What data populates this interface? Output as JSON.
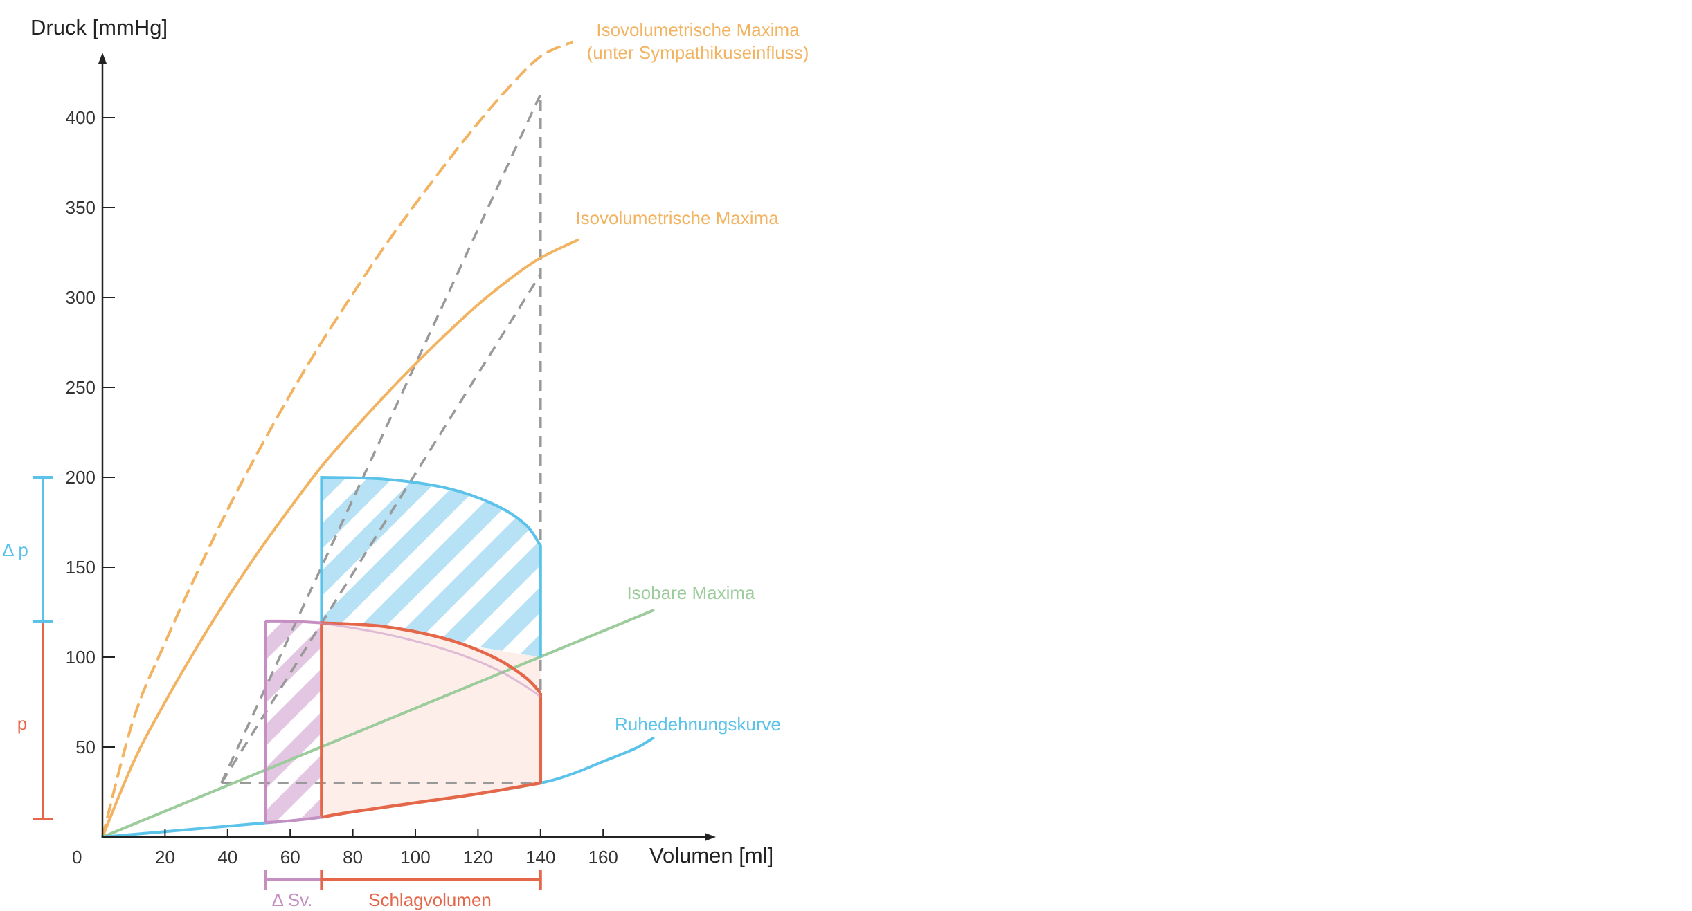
{
  "chart_data": {
    "type": "line",
    "xlabel": "Volumen [ml]",
    "ylabel": "Druck [mmHg]",
    "xlim": [
      0,
      175
    ],
    "ylim": [
      0,
      440
    ],
    "x_ticks": [
      20,
      40,
      60,
      80,
      100,
      120,
      140,
      160
    ],
    "y_ticks": [
      50,
      100,
      150,
      200,
      250,
      300,
      350,
      400
    ],
    "origin_label": "0",
    "colors": {
      "orange": "#f2b462",
      "green": "#9ccb9c",
      "blue": "#5bc2e9",
      "red": "#e5674a",
      "purple": "#c68fc2",
      "gray": "#999999"
    },
    "series": [
      {
        "name": "Isovolumetrische Maxima (unter Sympathikuseinfluss)",
        "style": "dashed",
        "color": "#f2b462",
        "x": [
          0,
          10,
          20,
          30,
          40,
          50,
          60,
          70,
          80,
          90,
          100,
          110,
          120,
          130,
          140,
          150
        ],
        "y": [
          0,
          66,
          108,
          146,
          182,
          215,
          246,
          275,
          302,
          328,
          352,
          375,
          397,
          417,
          434,
          442
        ]
      },
      {
        "name": "Isovolumetrische Maxima",
        "style": "solid",
        "color": "#f2b462",
        "x": [
          0,
          10,
          20,
          30,
          40,
          50,
          60,
          70,
          80,
          90,
          100,
          110,
          120,
          130,
          140,
          152
        ],
        "y": [
          0,
          42,
          75,
          105,
          133,
          159,
          183,
          206,
          226,
          245,
          263,
          280,
          296,
          310,
          322,
          332
        ]
      },
      {
        "name": "Isobare Maxima",
        "style": "solid",
        "color": "#9ccb9c",
        "x": [
          0,
          176
        ],
        "y": [
          0,
          126
        ]
      },
      {
        "name": "Ruhedehnungskurve",
        "style": "solid",
        "color": "#5bc2e9",
        "x": [
          0,
          20,
          40,
          53,
          60,
          70,
          80,
          100,
          120,
          140,
          150,
          160,
          170,
          176
        ],
        "y": [
          0,
          3,
          6,
          8,
          9,
          11,
          14,
          19,
          24,
          30,
          35,
          42,
          49,
          55
        ]
      }
    ],
    "helper_lines": {
      "color": "#999999",
      "points": [
        [
          [
            38,
            30
          ],
          [
            140,
            413
          ]
        ],
        [
          [
            38,
            30
          ],
          [
            140,
            313
          ]
        ],
        [
          [
            38,
            30
          ],
          [
            140,
            30
          ]
        ],
        [
          [
            140,
            30
          ],
          [
            140,
            413
          ]
        ]
      ]
    },
    "areas": [
      {
        "name": "blue-work-loop",
        "color": "#5bc2e9",
        "boundary": [
          [
            70,
            120
          ],
          [
            70,
            200
          ],
          [
            90,
            199
          ],
          [
            110,
            194
          ],
          [
            125,
            185
          ],
          [
            135,
            174
          ],
          [
            140,
            162
          ],
          [
            140,
            100
          ]
        ]
      },
      {
        "name": "red-work-loop",
        "color": "#e5674a",
        "boundary": [
          [
            70,
            11
          ],
          [
            70,
            119
          ],
          [
            90,
            117
          ],
          [
            110,
            110
          ],
          [
            125,
            100
          ],
          [
            135,
            89
          ],
          [
            140,
            80
          ],
          [
            140,
            30
          ],
          [
            120,
            24
          ],
          [
            100,
            19
          ],
          [
            80,
            14
          ],
          [
            70,
            11
          ]
        ]
      },
      {
        "name": "purple-work-loop",
        "color": "#c68fc2",
        "boundary": [
          [
            52,
            8
          ],
          [
            52,
            120
          ],
          [
            60,
            120
          ],
          [
            70,
            119
          ],
          [
            70,
            11
          ],
          [
            60,
            9
          ],
          [
            52,
            8
          ]
        ],
        "inner_curve": [
          [
            70,
            119
          ],
          [
            90,
            113
          ],
          [
            110,
            104
          ],
          [
            125,
            94
          ],
          [
            135,
            84
          ],
          [
            140,
            78
          ]
        ]
      }
    ],
    "annotations": [
      {
        "name": "delta-p",
        "text": "Δ p",
        "color": "#5bc2e9",
        "range_y": [
          120,
          200
        ]
      },
      {
        "name": "p",
        "text": "p",
        "color": "#e5674a",
        "range_y": [
          10,
          120
        ]
      },
      {
        "name": "delta-sv",
        "text": "Δ Sv.",
        "color": "#c68fc2",
        "range_x": [
          52,
          70
        ]
      },
      {
        "name": "schlagvolumen",
        "text": "Schlagvolumen",
        "color": "#e5674a",
        "range_x": [
          70,
          140
        ]
      }
    ],
    "labels": [
      {
        "name": "label-isovol-sympathikus-1",
        "text": "Isovolumetrische Maxima",
        "color": "#f2b462"
      },
      {
        "name": "label-isovol-sympathikus-2",
        "text": "(unter Sympathikuseinfluss)",
        "color": "#f2b462"
      },
      {
        "name": "label-isovol",
        "text": "Isovolumetrische Maxima",
        "color": "#f2b462"
      },
      {
        "name": "label-isobar",
        "text": "Isobare Maxima",
        "color": "#9ccb9c"
      },
      {
        "name": "label-ruhedehnung",
        "text": "Ruhedehnungskurve",
        "color": "#5bc2e9"
      }
    ]
  }
}
